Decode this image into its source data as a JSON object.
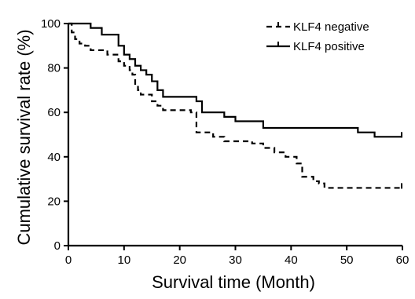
{
  "chart_data": {
    "type": "line",
    "step": true,
    "xlabel": "Survival time (Month)",
    "ylabel": "Cumulative survival rate (%)",
    "xlim": [
      0,
      60
    ],
    "ylim": [
      0,
      100
    ],
    "xticks": [
      "0",
      "10",
      "20",
      "30",
      "40",
      "50",
      "60"
    ],
    "yticks": [
      "0",
      "20",
      "40",
      "60",
      "80",
      "100"
    ],
    "grid": false,
    "legend_position": "top-right",
    "series": [
      {
        "name": "KLF4 negative",
        "style": "dashed",
        "x": [
          0,
          0.6,
          1.2,
          2,
          3,
          4,
          5,
          7,
          9,
          10,
          11,
          11.5,
          12,
          12.5,
          13,
          14,
          15,
          16,
          17,
          20,
          22,
          23,
          25,
          26,
          27,
          28,
          30,
          33,
          35,
          37,
          39,
          40,
          41,
          42,
          44,
          45,
          46,
          60
        ],
        "y": [
          100,
          96,
          93,
          91,
          90,
          88,
          88,
          86,
          83,
          81,
          79,
          77,
          72,
          70,
          68,
          68,
          65,
          63,
          61,
          61,
          60,
          51,
          51,
          49,
          49,
          47,
          47,
          46,
          44,
          42,
          40,
          40,
          37,
          31,
          29,
          28,
          26,
          26
        ]
      },
      {
        "name": "KLF4 positive",
        "style": "solid",
        "x": [
          0,
          3,
          4,
          6,
          8,
          9,
          10,
          11,
          12,
          13,
          14,
          15,
          16,
          17,
          22,
          23,
          24,
          26,
          28,
          30,
          35,
          52,
          55,
          60
        ],
        "y": [
          100,
          100,
          98,
          95,
          95,
          90,
          86,
          84,
          81,
          79,
          77,
          74,
          70,
          67,
          67,
          65,
          60,
          60,
          58,
          56,
          53,
          51,
          49,
          49
        ]
      }
    ]
  }
}
